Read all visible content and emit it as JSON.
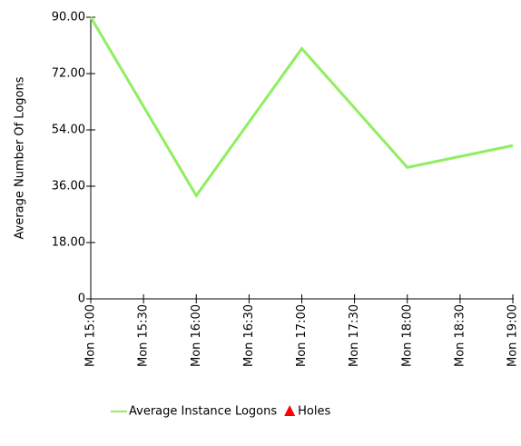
{
  "chart_data": {
    "type": "line",
    "y_label": "Average Number Of Logons",
    "xticks": [
      "Mon 15:00",
      "Mon 15:30",
      "Mon 16:00",
      "Mon 16:30",
      "Mon 17:00",
      "Mon 17:30",
      "Mon 18:00",
      "Mon 18:30",
      "Mon 19:00"
    ],
    "categories": [
      "Mon 15:00",
      "Mon 16:00",
      "Mon 17:00",
      "Mon 18:00",
      "Mon 19:00"
    ],
    "series": [
      {
        "name": "Average Instance Logons",
        "color": "#90ee60",
        "values": [
          90,
          33,
          80,
          42,
          49
        ]
      },
      {
        "name": "Holes",
        "color": "#ff0000",
        "marker": "triangle",
        "values": [
          null,
          null,
          null,
          null,
          null
        ]
      }
    ],
    "ylim": [
      0,
      90
    ],
    "yticks": [
      0,
      {
        "value": 18,
        "label": "18.00"
      },
      {
        "value": 36,
        "label": "36.00"
      },
      {
        "value": 54,
        "label": "54.00"
      },
      {
        "value": 72,
        "label": "72.00"
      },
      {
        "value": 90,
        "label": "90.00"
      }
    ]
  }
}
